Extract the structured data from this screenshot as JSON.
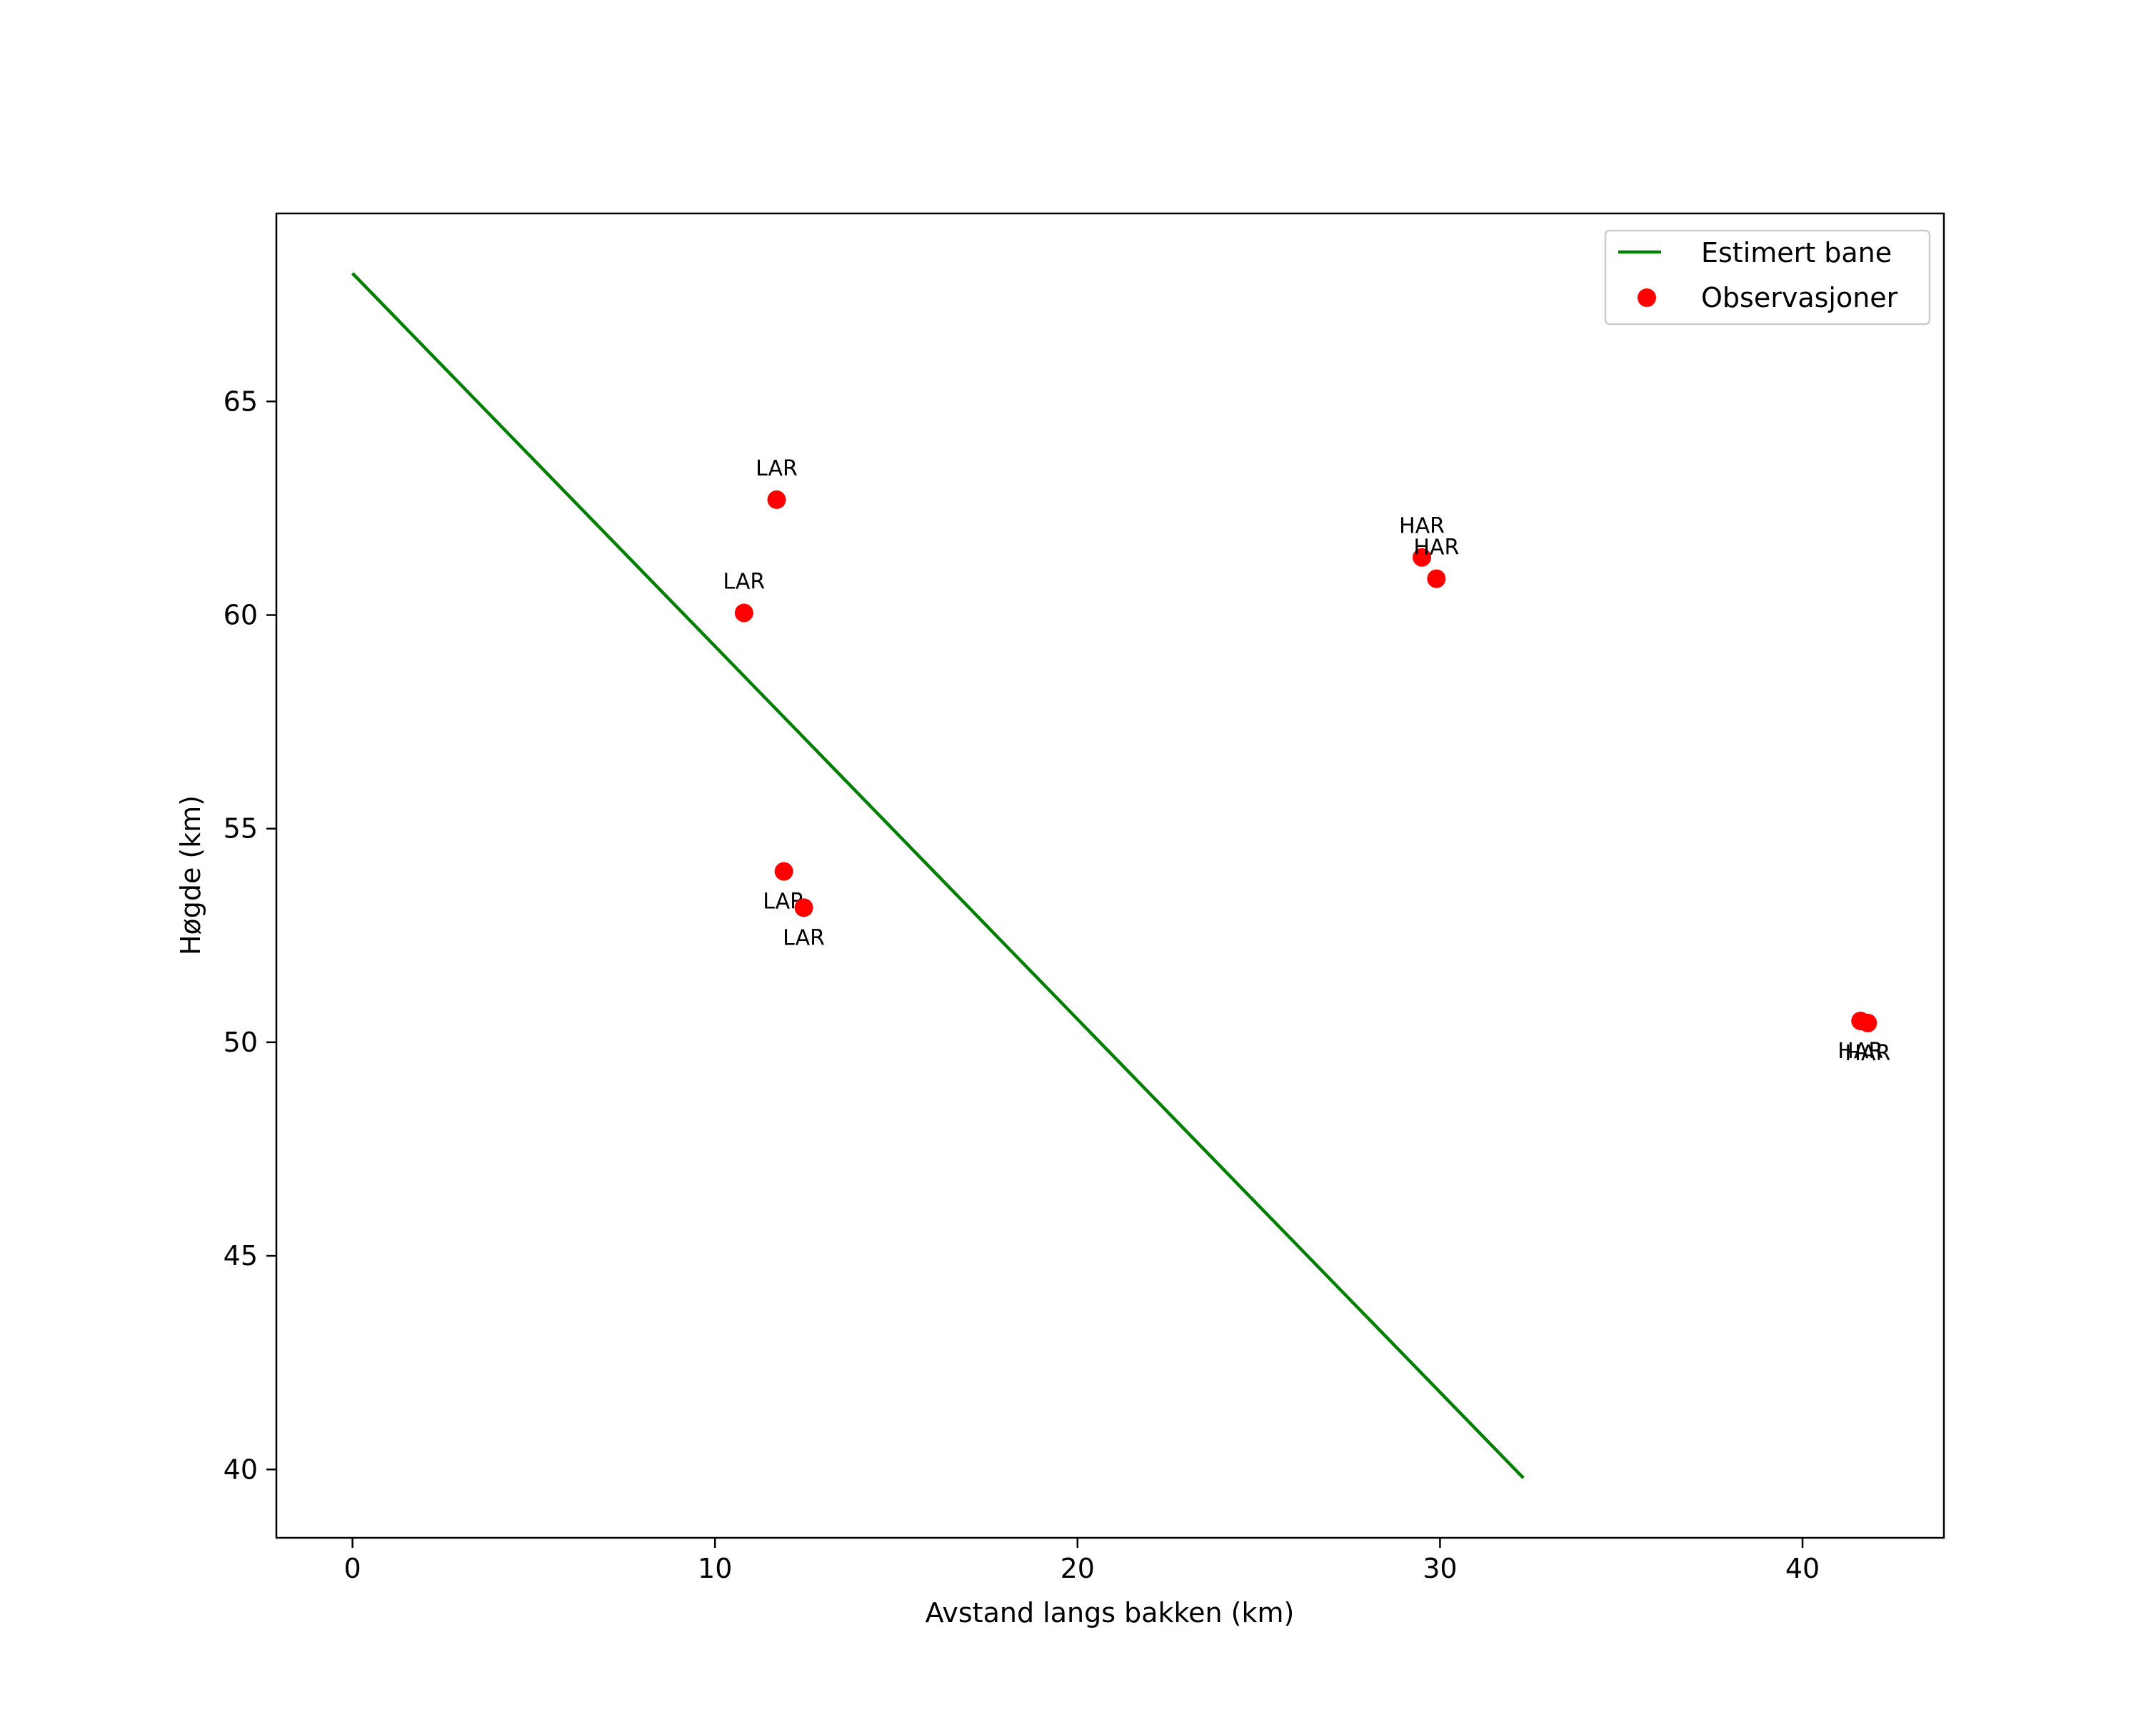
{
  "chart_data": {
    "type": "line+scatter",
    "title": "",
    "xlabel": "Avstand langs bakken (km)",
    "ylabel": "Høgde (km)",
    "xlim": [
      -2.1,
      43.9
    ],
    "ylim": [
      38.4,
      69.4
    ],
    "xticks": [
      0,
      10,
      20,
      30,
      40
    ],
    "yticks": [
      40,
      45,
      50,
      55,
      60,
      65
    ],
    "grid": false,
    "legend_position": "top-right",
    "series": [
      {
        "name": "Estimert bane",
        "kind": "line",
        "color": "#008000",
        "points": [
          [
            0,
            68.0
          ],
          [
            32.3,
            39.8
          ]
        ]
      },
      {
        "name": "Observasjoner",
        "kind": "scatter",
        "color": "#ff0000",
        "points": [
          {
            "x": 11.7,
            "y": 62.7,
            "label": "LAR",
            "label_pos": "above"
          },
          {
            "x": 10.8,
            "y": 60.05,
            "label": "LAR",
            "label_pos": "above"
          },
          {
            "x": 11.9,
            "y": 54.0,
            "label": "LAR",
            "label_pos": "below"
          },
          {
            "x": 12.45,
            "y": 53.15,
            "label": "LAR",
            "label_pos": "below"
          },
          {
            "x": 29.5,
            "y": 61.35,
            "label": "HAR",
            "label_pos": "above"
          },
          {
            "x": 29.9,
            "y": 60.85,
            "label": "HAR",
            "label_pos": "above"
          },
          {
            "x": 41.6,
            "y": 50.5,
            "label": "HAR",
            "label_pos": "below"
          },
          {
            "x": 41.8,
            "y": 50.45,
            "label": "HAR",
            "label_pos": "below"
          }
        ]
      }
    ]
  }
}
